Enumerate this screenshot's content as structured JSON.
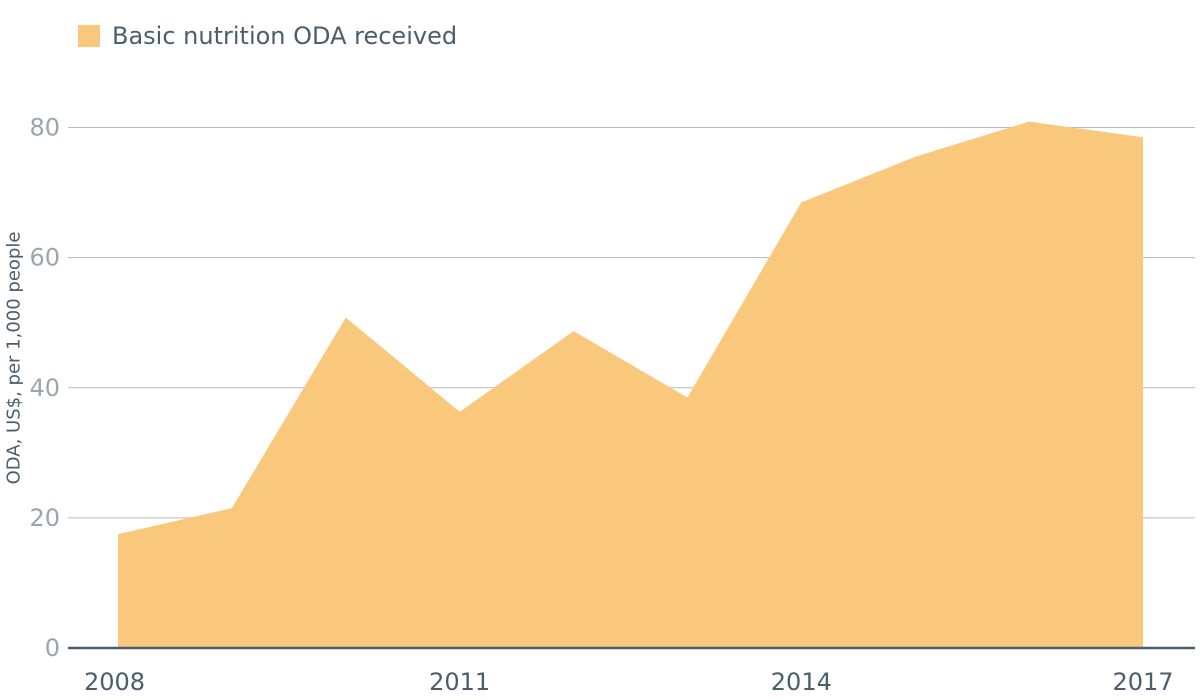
{
  "chart_data": {
    "type": "area",
    "title": "",
    "xlabel": "",
    "ylabel": "ODA, US$, per 1,000 people",
    "x": [
      2008,
      2009,
      2010,
      2011,
      2012,
      2013,
      2014,
      2015,
      2016,
      2017
    ],
    "series": [
      {
        "name": "Basic nutrition ODA received",
        "values": [
          17.5,
          21.5,
          50.8,
          36.3,
          48.7,
          38.5,
          68.5,
          75.5,
          80.9,
          78.5
        ],
        "color": "#fac87c"
      }
    ],
    "xticks": [
      "2008",
      "2011",
      "2014",
      "2017"
    ],
    "yticks": [
      "0",
      "20",
      "40",
      "60",
      "80"
    ],
    "ylim": [
      0,
      80
    ],
    "grid": "horizontal",
    "legend_position": "top-left",
    "colors": {
      "axis_line": "#4a5e6c",
      "grid_line": "#b4bac1",
      "ytick_text": "#9aa6ad",
      "xtick_text": "#4a5e6c"
    }
  }
}
